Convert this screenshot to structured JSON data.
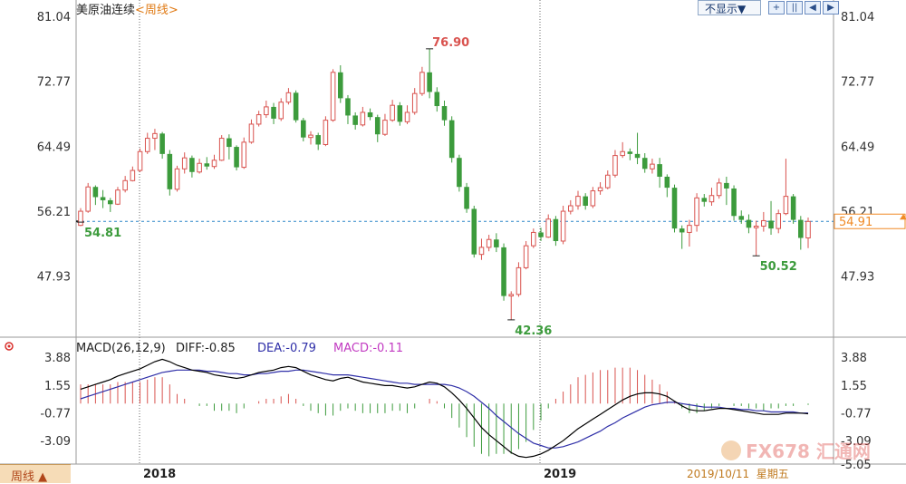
{
  "header": {
    "title": "美原油连续",
    "period_tag": "<周线>",
    "display_dropdown": "不显示▼"
  },
  "toolbar": {
    "icons": [
      "zoom-in-icon",
      "split-view-icon",
      "step-back-icon",
      "step-forward-icon"
    ]
  },
  "footer": {
    "period_button": "周线 ▲",
    "date_readout": "2019/10/11  星期五",
    "watermark": "FX678 汇通网"
  },
  "colors": {
    "up": "#d9534f",
    "down": "#3c9b3c",
    "grid": "#6a6a6a",
    "current_price_line": "#2a86c8",
    "current_price_badge": "#f08a24",
    "diff_line": "#000000",
    "dea_line": "#2f2fa8",
    "macd_label": "#c23bc2",
    "text_muted": "#333333"
  },
  "chart_data": [
    {
      "type": "candlestick",
      "title": "美原油连续<周线>",
      "yticks": [
        "81.04",
        "72.77",
        "64.49",
        "56.21",
        "47.93"
      ],
      "ylim": [
        40.5,
        81.04
      ],
      "x_axis_labels": [
        "2018",
        "2019"
      ],
      "current_price": 54.91,
      "annotations": [
        {
          "label": "76.90",
          "value": 76.9,
          "type": "high"
        },
        {
          "label": "42.36",
          "value": 42.36,
          "type": "low"
        },
        {
          "label": "54.81",
          "value": 54.81,
          "type": "low"
        },
        {
          "label": "50.52",
          "value": 50.52,
          "type": "low"
        }
      ],
      "candles": [
        [
          54.4,
          56.2,
          54.3,
          56.6
        ],
        [
          56.2,
          59.3,
          56.0,
          59.8
        ],
        [
          59.3,
          58.0,
          57.0,
          59.5
        ],
        [
          58.0,
          57.6,
          56.6,
          58.9
        ],
        [
          57.6,
          57.1,
          56.1,
          57.9
        ],
        [
          57.1,
          58.9,
          57.0,
          59.3
        ],
        [
          58.9,
          60.1,
          58.6,
          60.7
        ],
        [
          60.1,
          61.4,
          60.0,
          61.9
        ],
        [
          61.4,
          63.8,
          61.2,
          64.2
        ],
        [
          63.8,
          65.5,
          63.5,
          66.2
        ],
        [
          65.5,
          66.1,
          64.0,
          66.7
        ],
        [
          66.1,
          63.5,
          62.9,
          66.3
        ],
        [
          63.5,
          59.0,
          58.2,
          64.0
        ],
        [
          59.0,
          61.6,
          58.7,
          62.0
        ],
        [
          61.6,
          63.0,
          61.0,
          63.7
        ],
        [
          63.0,
          61.2,
          60.5,
          63.3
        ],
        [
          61.2,
          62.3,
          61.0,
          62.9
        ],
        [
          62.3,
          61.9,
          61.5,
          63.1
        ],
        [
          61.9,
          62.7,
          61.6,
          63.4
        ],
        [
          62.7,
          65.5,
          62.6,
          65.9
        ],
        [
          65.5,
          64.4,
          62.8,
          66.0
        ],
        [
          64.4,
          61.8,
          61.4,
          64.6
        ],
        [
          61.8,
          65.0,
          61.6,
          65.6
        ],
        [
          65.0,
          67.3,
          64.8,
          67.9
        ],
        [
          67.3,
          68.5,
          67.0,
          69.0
        ],
        [
          68.5,
          69.5,
          68.1,
          70.3
        ],
        [
          69.5,
          68.0,
          67.3,
          70.0
        ],
        [
          68.0,
          70.1,
          67.7,
          70.6
        ],
        [
          70.1,
          71.3,
          69.8,
          71.9
        ],
        [
          71.3,
          67.8,
          67.5,
          71.6
        ],
        [
          67.8,
          65.6,
          65.1,
          68.1
        ],
        [
          65.6,
          65.9,
          64.7,
          66.4
        ],
        [
          65.9,
          64.7,
          64.0,
          66.2
        ],
        [
          64.7,
          67.8,
          64.5,
          68.3
        ],
        [
          67.8,
          73.9,
          67.6,
          74.3
        ],
        [
          73.9,
          70.6,
          70.0,
          74.8
        ],
        [
          70.6,
          68.4,
          67.3,
          71.0
        ],
        [
          68.4,
          67.2,
          66.6,
          68.8
        ],
        [
          67.2,
          68.8,
          67.0,
          69.5
        ],
        [
          68.8,
          68.2,
          67.8,
          69.3
        ],
        [
          68.2,
          66.0,
          65.0,
          68.5
        ],
        [
          66.0,
          67.8,
          65.8,
          68.6
        ],
        [
          67.8,
          69.7,
          67.6,
          70.4
        ],
        [
          69.7,
          67.6,
          67.1,
          70.1
        ],
        [
          67.6,
          68.8,
          67.3,
          69.7
        ],
        [
          68.8,
          71.2,
          68.5,
          71.9
        ],
        [
          71.2,
          73.9,
          70.9,
          74.6
        ],
        [
          73.9,
          71.4,
          70.6,
          76.9
        ],
        [
          71.4,
          69.6,
          68.9,
          72.0
        ],
        [
          69.6,
          67.8,
          67.1,
          70.3
        ],
        [
          67.8,
          63.0,
          62.4,
          68.3
        ],
        [
          63.0,
          59.3,
          58.7,
          63.4
        ],
        [
          59.3,
          56.5,
          56.0,
          59.8
        ],
        [
          56.5,
          50.7,
          50.3,
          56.9
        ],
        [
          50.7,
          51.6,
          50.0,
          52.7
        ],
        [
          51.6,
          52.6,
          51.1,
          53.2
        ],
        [
          52.6,
          51.6,
          51.0,
          53.4
        ],
        [
          51.6,
          45.4,
          44.8,
          52.1
        ],
        [
          45.4,
          45.6,
          42.36,
          46.0
        ],
        [
          45.6,
          49.0,
          45.3,
          49.7
        ],
        [
          49.0,
          51.8,
          48.8,
          52.4
        ],
        [
          51.8,
          53.5,
          51.5,
          54.0
        ],
        [
          53.5,
          52.9,
          52.4,
          54.1
        ],
        [
          52.9,
          55.2,
          52.8,
          55.8
        ],
        [
          55.2,
          52.4,
          51.8,
          55.6
        ],
        [
          52.4,
          56.2,
          52.0,
          56.9
        ],
        [
          56.2,
          56.9,
          55.8,
          57.6
        ],
        [
          56.9,
          58.1,
          56.4,
          58.8
        ],
        [
          58.1,
          56.9,
          56.4,
          58.5
        ],
        [
          56.9,
          58.8,
          56.6,
          59.3
        ],
        [
          58.8,
          59.2,
          58.3,
          59.9
        ],
        [
          59.2,
          60.8,
          59.0,
          61.4
        ],
        [
          60.8,
          63.3,
          60.5,
          64.0
        ],
        [
          63.3,
          63.8,
          63.0,
          65.0
        ],
        [
          63.8,
          63.5,
          62.7,
          64.2
        ],
        [
          63.5,
          63.0,
          62.2,
          66.2
        ],
        [
          63.0,
          61.6,
          61.1,
          63.6
        ],
        [
          61.6,
          62.2,
          61.0,
          62.9
        ],
        [
          62.2,
          60.6,
          59.2,
          63.0
        ],
        [
          60.6,
          59.2,
          58.0,
          60.9
        ],
        [
          59.2,
          54.0,
          53.5,
          59.6
        ],
        [
          54.0,
          53.5,
          51.4,
          54.4
        ],
        [
          53.5,
          54.4,
          51.7,
          55.1
        ],
        [
          54.4,
          57.9,
          53.6,
          58.5
        ],
        [
          57.9,
          57.4,
          56.8,
          58.4
        ],
        [
          57.4,
          58.2,
          56.9,
          59.2
        ],
        [
          58.2,
          59.8,
          57.8,
          60.4
        ],
        [
          59.8,
          59.1,
          57.0,
          60.6
        ],
        [
          59.1,
          55.6,
          55.0,
          59.5
        ],
        [
          55.6,
          55.1,
          54.6,
          56.3
        ],
        [
          55.1,
          54.1,
          53.4,
          55.8
        ],
        [
          54.1,
          54.3,
          50.52,
          55.0
        ],
        [
          54.3,
          55.0,
          53.6,
          56.1
        ],
        [
          55.0,
          54.0,
          53.2,
          57.5
        ],
        [
          54.0,
          55.9,
          53.4,
          56.4
        ],
        [
          55.9,
          58.1,
          55.7,
          62.9
        ],
        [
          58.1,
          55.1,
          54.6,
          58.4
        ],
        [
          55.1,
          52.8,
          51.3,
          55.6
        ],
        [
          52.8,
          54.9,
          51.5,
          55.4
        ]
      ]
    },
    {
      "type": "macd",
      "title": "MACD(26,12,9)",
      "indicator_labels": [
        "MACD(26,12,9)",
        "DIFF:-0.85",
        "DEA:-0.79",
        "MACD:-0.11"
      ],
      "yticks": [
        "3.88",
        "1.55",
        "-0.77",
        "-3.09",
        "-5.05"
      ],
      "ylim": [
        -5.05,
        3.88
      ],
      "diff": [
        1.2,
        1.4,
        1.6,
        1.8,
        2.0,
        2.3,
        2.5,
        2.7,
        2.9,
        3.2,
        3.5,
        3.7,
        3.5,
        3.2,
        3.0,
        2.8,
        2.7,
        2.6,
        2.4,
        2.3,
        2.2,
        2.1,
        2.2,
        2.4,
        2.6,
        2.7,
        2.8,
        3.0,
        3.1,
        3.0,
        2.7,
        2.4,
        2.2,
        2.0,
        1.9,
        2.1,
        2.2,
        2.0,
        1.8,
        1.7,
        1.6,
        1.5,
        1.5,
        1.4,
        1.3,
        1.4,
        1.6,
        1.8,
        1.7,
        1.4,
        0.9,
        0.3,
        -0.4,
        -1.2,
        -2.0,
        -2.6,
        -3.1,
        -3.6,
        -4.1,
        -4.4,
        -4.5,
        -4.4,
        -4.2,
        -3.9,
        -3.5,
        -3.1,
        -2.6,
        -2.1,
        -1.7,
        -1.3,
        -0.9,
        -0.5,
        -0.1,
        0.3,
        0.6,
        0.8,
        0.9,
        0.9,
        0.8,
        0.6,
        0.2,
        -0.2,
        -0.5,
        -0.6,
        -0.6,
        -0.5,
        -0.4,
        -0.4,
        -0.5,
        -0.6,
        -0.7,
        -0.8,
        -0.9,
        -0.9,
        -0.9,
        -0.8,
        -0.8,
        -0.8,
        -0.85
      ],
      "dea": [
        0.4,
        0.6,
        0.8,
        1.0,
        1.2,
        1.4,
        1.6,
        1.8,
        2.0,
        2.2,
        2.4,
        2.6,
        2.7,
        2.8,
        2.8,
        2.8,
        2.8,
        2.7,
        2.7,
        2.6,
        2.5,
        2.5,
        2.4,
        2.4,
        2.5,
        2.5,
        2.6,
        2.7,
        2.7,
        2.8,
        2.8,
        2.7,
        2.6,
        2.5,
        2.4,
        2.4,
        2.4,
        2.3,
        2.2,
        2.1,
        2.0,
        1.9,
        1.8,
        1.7,
        1.7,
        1.6,
        1.6,
        1.6,
        1.6,
        1.6,
        1.5,
        1.3,
        1.0,
        0.6,
        0.1,
        -0.4,
        -1.0,
        -1.5,
        -2.0,
        -2.5,
        -2.9,
        -3.3,
        -3.5,
        -3.7,
        -3.7,
        -3.6,
        -3.4,
        -3.2,
        -2.9,
        -2.6,
        -2.3,
        -1.9,
        -1.6,
        -1.2,
        -0.9,
        -0.6,
        -0.3,
        -0.1,
        0.0,
        0.1,
        0.1,
        0.0,
        -0.1,
        -0.2,
        -0.3,
        -0.3,
        -0.3,
        -0.4,
        -0.4,
        -0.5,
        -0.5,
        -0.6,
        -0.6,
        -0.7,
        -0.7,
        -0.7,
        -0.7,
        -0.8,
        -0.79
      ],
      "macd": [
        1.6,
        1.6,
        1.6,
        1.6,
        1.6,
        1.8,
        1.8,
        1.8,
        1.8,
        2.0,
        2.2,
        2.2,
        1.6,
        0.8,
        0.4,
        0.0,
        -0.2,
        -0.2,
        -0.6,
        -0.6,
        -0.6,
        -0.8,
        -0.4,
        0.0,
        0.2,
        0.4,
        0.4,
        0.6,
        0.8,
        0.4,
        -0.2,
        -0.6,
        -0.8,
        -1.0,
        -1.0,
        -0.6,
        -0.4,
        -0.6,
        -0.8,
        -0.8,
        -0.8,
        -0.8,
        -0.6,
        -0.6,
        -0.8,
        -0.4,
        0.0,
        0.4,
        0.2,
        -0.4,
        -1.2,
        -2.0,
        -2.8,
        -3.6,
        -4.2,
        -4.4,
        -4.2,
        -4.2,
        -4.2,
        -3.8,
        -3.2,
        -2.2,
        -1.4,
        -0.4,
        0.4,
        1.0,
        1.6,
        2.2,
        2.4,
        2.6,
        2.8,
        2.8,
        3.0,
        3.0,
        3.0,
        2.8,
        2.4,
        2.0,
        1.6,
        1.0,
        0.2,
        -0.4,
        -0.8,
        -0.8,
        -0.6,
        -0.4,
        -0.2,
        0.0,
        -0.2,
        -0.2,
        -0.4,
        -0.4,
        -0.6,
        -0.4,
        -0.4,
        -0.2,
        -0.2,
        0.0,
        -0.11
      ]
    }
  ]
}
